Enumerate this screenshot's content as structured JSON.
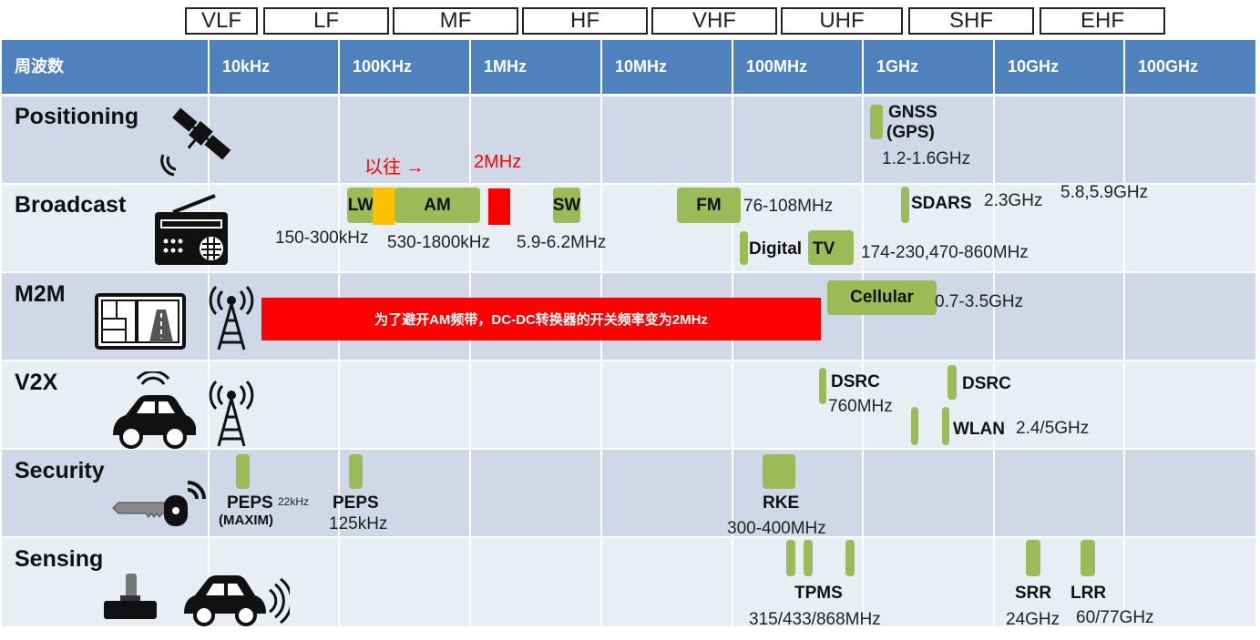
{
  "bands": [
    "VLF",
    "LF",
    "MF",
    "HF",
    "VHF",
    "UHF",
    "SHF",
    "EHF"
  ],
  "header": {
    "first": "周波数",
    "freqs": [
      "10kHz",
      "100KHz",
      "1MHz",
      "10MHz",
      "100MHz",
      "1GHz",
      "10GHz",
      "100GHz"
    ]
  },
  "rows": {
    "positioning": "Positioning",
    "broadcast": "Broadcast",
    "m2m": "M2M",
    "v2x": "V2X",
    "security": "Security",
    "sensing": "Sensing"
  },
  "positioning": {
    "gnss": "GNSS",
    "gps": "(GPS)",
    "gnss_freq": "1.2-1.6GHz"
  },
  "broadcast": {
    "note": "以往 →",
    "note_freq": "2MHz",
    "lw": "LW",
    "am": "AM",
    "sw": "SW",
    "fm": "FM",
    "fm_freq": "76-108MHz",
    "lw_freq": "150-300kHz",
    "am_freq": "530-1800kHz",
    "sw_freq": "5.9-6.2MHz",
    "sdars": "SDARS",
    "sdars_freq": "2.3GHz",
    "sdars_freq2": "5.8,5.9GHz",
    "dtv_a": "Digital",
    "dtv_b": "TV",
    "dtv_freq": "174-230,470-860MHz"
  },
  "m2m": {
    "banner": "为了避开AM频带，DC-DC转换器的开关频率变为2MHz",
    "cellular": "Cellular",
    "cellular_freq": "0.7-3.5GHz"
  },
  "v2x": {
    "dsrc1": "DSRC",
    "dsrc1_freq": "760MHz",
    "dsrc2": "DSRC",
    "wlan": "WLAN",
    "wlan_freq": "2.4/5GHz"
  },
  "security": {
    "peps1": "PEPS",
    "peps1_small": "22kHz",
    "peps1_sub": "(MAXIM)",
    "peps2": "PEPS",
    "peps2_freq": "125kHz",
    "rke": "RKE",
    "rke_freq": "300-400MHz"
  },
  "sensing": {
    "tpms": "TPMS",
    "tpms_freq": "315/433/868MHz",
    "srr": "SRR",
    "srr_freq": "24GHz",
    "lrr": "LRR",
    "lrr_freq": "60/77GHz"
  },
  "colors": {
    "header": "#4f81bd",
    "row_dark": "#d0d8e8",
    "row_light": "#e9edf4",
    "green": "#9bbb59",
    "red": "#ff0000",
    "orange": "#ffc000"
  },
  "icons": [
    "satellite-icon",
    "radio-icon",
    "display-icon",
    "antenna-icon",
    "car-icon",
    "key-icon",
    "sensor-icon"
  ]
}
